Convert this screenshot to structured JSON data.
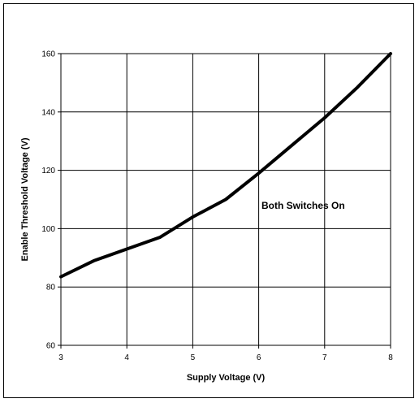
{
  "chart_data": {
    "type": "line",
    "title": "",
    "xlabel": "Supply Voltage (V)",
    "ylabel": "Enable Threshold Voltage (V)",
    "xlim": [
      3,
      8
    ],
    "ylim": [
      60,
      160
    ],
    "xticks": [
      3,
      4,
      5,
      6,
      7,
      8
    ],
    "yticks": [
      60,
      80,
      100,
      120,
      140,
      160
    ],
    "grid": true,
    "annotation": "Both Switches On",
    "series": [
      {
        "x": [
          3,
          3.5,
          4,
          4.5,
          5,
          5.5,
          6,
          6.5,
          7,
          7.5,
          8
        ],
        "y": [
          83.5,
          89,
          93,
          97,
          104,
          110,
          119,
          128.5,
          138,
          148.5,
          160
        ]
      }
    ]
  }
}
